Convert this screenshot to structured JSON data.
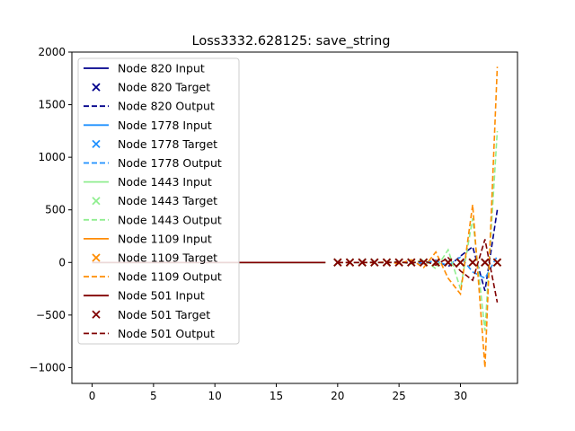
{
  "chart_data": {
    "type": "line",
    "title": "Loss3332.628125: save_string",
    "xlabel": "",
    "ylabel": "",
    "xlim": [
      -1.65,
      34.65
    ],
    "ylim": [
      -1150,
      2000
    ],
    "xticks": [
      0,
      5,
      10,
      15,
      20,
      25,
      30
    ],
    "yticks": [
      -1000,
      -500,
      0,
      500,
      1000,
      1500,
      2000
    ],
    "legend_position": "upper-left",
    "grid": false,
    "series": [
      {
        "node": "820",
        "color": "#00008b",
        "input_label": "Node 820 Input",
        "target_label": "Node 820 Target",
        "output_label": "Node 820 Output",
        "input_x": [
          0,
          1,
          2,
          3,
          4,
          5,
          6,
          7,
          8,
          9,
          10,
          11,
          12,
          13,
          14,
          15,
          16,
          17,
          18,
          19
        ],
        "input_y": [
          0,
          0,
          0,
          0,
          0,
          0,
          0,
          0,
          0,
          0,
          0,
          0,
          0,
          0,
          0,
          0,
          0,
          0,
          0,
          0
        ],
        "target_x": [
          20,
          21,
          22,
          23,
          24,
          25,
          26,
          27,
          28,
          29,
          30,
          31,
          32,
          33
        ],
        "target_y": [
          0,
          0,
          0,
          0,
          0,
          0,
          0,
          0,
          0,
          0,
          0,
          0,
          0,
          0
        ],
        "output_x": [
          20,
          21,
          22,
          23,
          24,
          25,
          26,
          27,
          28,
          29,
          30,
          31,
          32,
          33
        ],
        "output_y": [
          0,
          0,
          0,
          0,
          2,
          -3,
          6,
          -10,
          20,
          -40,
          60,
          150,
          -270,
          500
        ]
      },
      {
        "node": "1778",
        "color": "#1e90ff",
        "input_label": "Node 1778 Input",
        "target_label": "Node 1778 Target",
        "output_label": "Node 1778 Output",
        "input_x": [
          0,
          1,
          2,
          3,
          4,
          5,
          6,
          7,
          8,
          9,
          10,
          11,
          12,
          13,
          14,
          15,
          16,
          17,
          18,
          19
        ],
        "input_y": [
          0,
          0,
          0,
          0,
          0,
          0,
          0,
          0,
          0,
          0,
          0,
          0,
          0,
          0,
          0,
          0,
          0,
          0,
          0,
          0
        ],
        "target_x": [
          20,
          21,
          22,
          23,
          24,
          25,
          26,
          27,
          28,
          29,
          30,
          31,
          32,
          33
        ],
        "target_y": [
          0,
          0,
          0,
          0,
          0,
          0,
          0,
          0,
          0,
          0,
          0,
          0,
          0,
          0
        ],
        "output_x": [
          20,
          21,
          22,
          23,
          24,
          25,
          26,
          27,
          28,
          29,
          30,
          31,
          32,
          33
        ],
        "output_y": [
          0,
          0,
          0,
          0,
          1,
          -2,
          4,
          -8,
          15,
          -30,
          50,
          -90,
          -150,
          60
        ]
      },
      {
        "node": "1443",
        "color": "#90ee90",
        "input_label": "Node 1443 Input",
        "target_label": "Node 1443 Target",
        "output_label": "Node 1443 Output",
        "input_x": [
          0,
          1,
          2,
          3,
          4,
          5,
          6,
          7,
          8,
          9,
          10,
          11,
          12,
          13,
          14,
          15,
          16,
          17,
          18,
          19
        ],
        "input_y": [
          0,
          0,
          0,
          0,
          0,
          0,
          0,
          0,
          0,
          0,
          0,
          0,
          0,
          0,
          0,
          0,
          0,
          0,
          0,
          0
        ],
        "target_x": [
          20,
          21,
          22,
          23,
          24,
          25,
          26,
          27,
          28,
          29,
          30,
          31,
          32,
          33
        ],
        "target_y": [
          0,
          0,
          0,
          0,
          0,
          0,
          0,
          0,
          0,
          0,
          0,
          0,
          0,
          0
        ],
        "output_x": [
          20,
          21,
          22,
          23,
          24,
          25,
          26,
          27,
          28,
          29,
          30,
          31,
          32,
          33
        ],
        "output_y": [
          0,
          0,
          0,
          2,
          -4,
          8,
          -15,
          30,
          -60,
          120,
          -250,
          420,
          -650,
          1250
        ]
      },
      {
        "node": "1109",
        "color": "#ff8c00",
        "input_label": "Node 1109 Input",
        "target_label": "Node 1109 Target",
        "output_label": "Node 1109 Output",
        "input_x": [
          0,
          1,
          2,
          3,
          4,
          5,
          6,
          7,
          8,
          9,
          10,
          11,
          12,
          13,
          14,
          15,
          16,
          17,
          18,
          19
        ],
        "input_y": [
          0,
          0,
          0,
          0,
          0,
          0,
          0,
          0,
          0,
          0,
          0,
          0,
          0,
          0,
          0,
          0,
          0,
          0,
          0,
          0
        ],
        "target_x": [
          20,
          21,
          22,
          23,
          24,
          25,
          26,
          27,
          28,
          29,
          30,
          31,
          32,
          33
        ],
        "target_y": [
          0,
          0,
          0,
          0,
          0,
          0,
          0,
          0,
          0,
          0,
          0,
          0,
          0,
          0
        ],
        "output_x": [
          20,
          21,
          22,
          23,
          24,
          25,
          26,
          27,
          28,
          29,
          30,
          31,
          32,
          33
        ],
        "output_y": [
          0,
          0,
          0,
          -3,
          6,
          -12,
          25,
          -50,
          100,
          -150,
          -300,
          550,
          -1000,
          1860
        ]
      },
      {
        "node": "501",
        "color": "#800000",
        "input_label": "Node 501 Input",
        "target_label": "Node 501 Target",
        "output_label": "Node 501 Output",
        "input_x": [
          0,
          1,
          2,
          3,
          4,
          5,
          6,
          7,
          8,
          9,
          10,
          11,
          12,
          13,
          14,
          15,
          16,
          17,
          18,
          19
        ],
        "input_y": [
          0,
          0,
          0,
          0,
          0,
          0,
          0,
          0,
          0,
          0,
          0,
          0,
          0,
          0,
          0,
          0,
          0,
          0,
          0,
          0
        ],
        "target_x": [
          20,
          21,
          22,
          23,
          24,
          25,
          26,
          27,
          28,
          29,
          30,
          31,
          32,
          33
        ],
        "target_y": [
          0,
          0,
          0,
          0,
          0,
          0,
          0,
          0,
          0,
          0,
          0,
          0,
          0,
          0
        ],
        "output_x": [
          20,
          21,
          22,
          23,
          24,
          25,
          26,
          27,
          28,
          29,
          30,
          31,
          32,
          33
        ],
        "output_y": [
          0,
          0,
          0,
          1,
          -2,
          4,
          -8,
          15,
          -25,
          45,
          -80,
          -170,
          220,
          -380
        ]
      }
    ]
  }
}
